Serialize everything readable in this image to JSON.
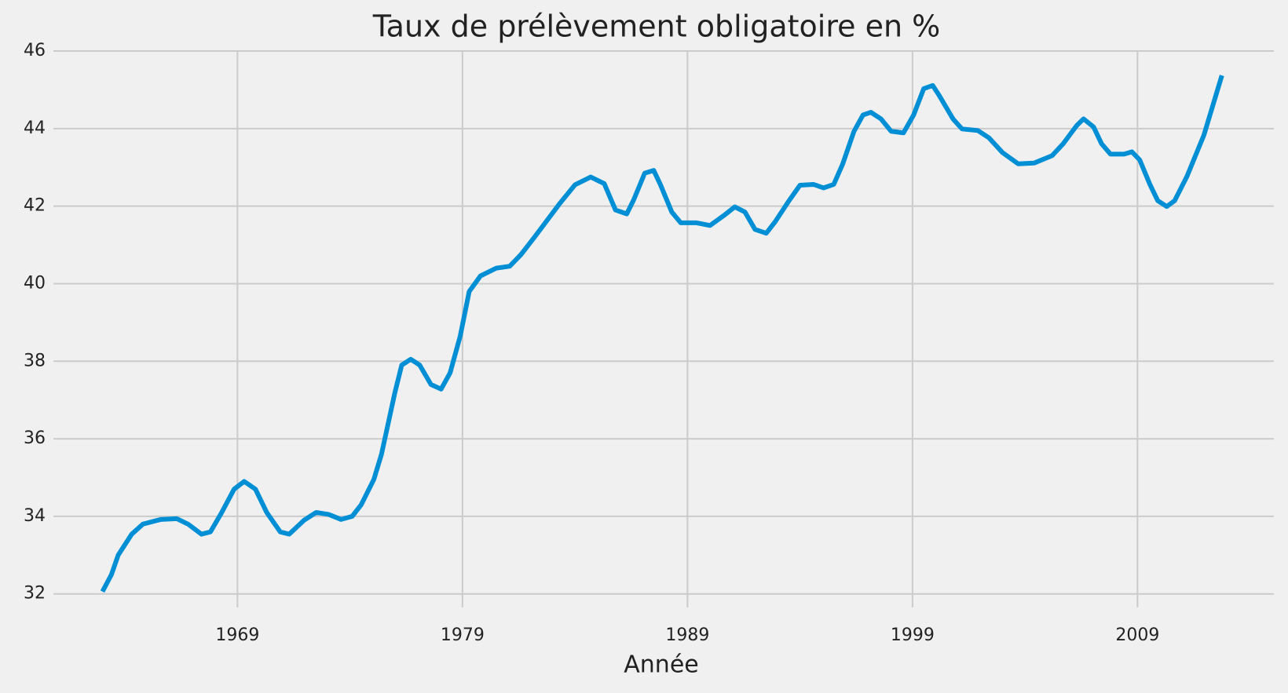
{
  "chart_data": {
    "type": "line",
    "title": "Taux de prélèvement obligatoire en %",
    "x_label": "Année",
    "x": [
      1963.0,
      1963.4,
      1963.7,
      1964.3,
      1964.8,
      1965.6,
      1966.3,
      1966.8,
      1967.4,
      1967.8,
      1968.3,
      1968.85,
      1969.3,
      1969.8,
      1970.3,
      1970.9,
      1971.3,
      1971.96,
      1972.5,
      1973.05,
      1973.6,
      1974.1,
      1974.5,
      1975.06,
      1975.4,
      1976.0,
      1976.3,
      1976.7,
      1977.1,
      1977.6,
      1978.05,
      1978.45,
      1978.9,
      1979.3,
      1979.8,
      1980.5,
      1981.1,
      1981.6,
      1982.2,
      1983.3,
      1984.0,
      1984.7,
      1985.3,
      1985.8,
      1986.3,
      1986.6,
      1987.1,
      1987.5,
      1987.8,
      1988.3,
      1988.7,
      1989.4,
      1990.0,
      1990.6,
      1991.1,
      1991.55,
      1992.0,
      1992.5,
      1992.9,
      1993.5,
      1994.0,
      1994.6,
      1995.05,
      1995.5,
      1995.9,
      1996.4,
      1996.8,
      1997.15,
      1997.6,
      1998.05,
      1998.6,
      1999.05,
      1999.5,
      1999.9,
      2000.2,
      2000.8,
      2001.2,
      2001.9,
      2002.4,
      2003.0,
      2003.7,
      2004.4,
      2005.2,
      2005.7,
      2006.3,
      2006.6,
      2007.05,
      2007.4,
      2007.8,
      2008.4,
      2008.75,
      2009.1,
      2009.55,
      2009.9,
      2010.3,
      2010.65,
      2011.2,
      2011.95,
      2012.75
    ],
    "series": [
      {
        "name": "Taux",
        "color": "#008fd5",
        "values": [
          32.06,
          32.5,
          33.0,
          33.54,
          33.8,
          33.92,
          33.94,
          33.8,
          33.54,
          33.6,
          34.1,
          34.7,
          34.9,
          34.7,
          34.1,
          33.6,
          33.54,
          33.9,
          34.1,
          34.05,
          33.92,
          34.0,
          34.3,
          34.95,
          35.6,
          37.2,
          37.9,
          38.05,
          37.9,
          37.4,
          37.28,
          37.7,
          38.65,
          39.8,
          40.2,
          40.4,
          40.45,
          40.75,
          41.2,
          42.05,
          42.55,
          42.75,
          42.58,
          41.9,
          41.8,
          42.15,
          42.85,
          42.92,
          42.55,
          41.85,
          41.57,
          41.57,
          41.5,
          41.75,
          41.98,
          41.85,
          41.4,
          41.3,
          41.6,
          42.13,
          42.54,
          42.56,
          42.47,
          42.56,
          43.09,
          43.93,
          44.35,
          44.42,
          44.25,
          43.93,
          43.89,
          44.35,
          45.03,
          45.11,
          44.84,
          44.25,
          43.99,
          43.95,
          43.76,
          43.38,
          43.09,
          43.11,
          43.3,
          43.61,
          44.08,
          44.25,
          44.04,
          43.61,
          43.34,
          43.34,
          43.4,
          43.19,
          42.56,
          42.14,
          41.99,
          42.14,
          42.77,
          43.83,
          45.37
        ]
      }
    ],
    "xlim": [
      1960.82,
      2015.06
    ],
    "xticks": [
      1969,
      1979,
      1989,
      1999,
      2009
    ],
    "ylim": [
      31.65,
      46.0
    ],
    "yticks": [
      32,
      34,
      36,
      38,
      40,
      42,
      44,
      46
    ],
    "grid": true
  }
}
